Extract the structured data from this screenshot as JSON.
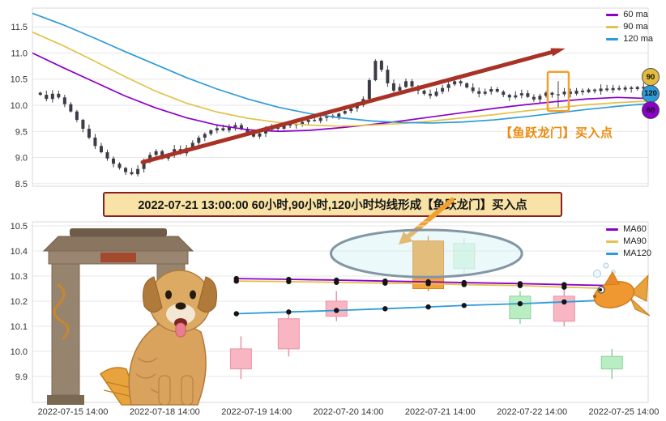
{
  "banner": {
    "text": "2022-07-21 13:00:00 60小时,90小时,120小时均线形成【鱼跃龙门】买入点",
    "bg": "#f8e2a6",
    "border": "#8b1f1f",
    "arrow_color": "#f0a030"
  },
  "chart_data": [
    {
      "id": "hourly-overview",
      "type": "candlestick",
      "ylim": [
        8.45,
        11.86
      ],
      "yticks": [
        11.5,
        11.0,
        10.5,
        10.0,
        9.5,
        9.0,
        8.5
      ],
      "legend": [
        {
          "label": "60 ma",
          "color": "#8b00c8"
        },
        {
          "label": "90 ma",
          "color": "#e3c24d"
        },
        {
          "label": "120 ma",
          "color": "#2d9bd8"
        }
      ],
      "candle_color": "#3c3c46",
      "closes": [
        10.2,
        10.12,
        10.22,
        10.15,
        10.02,
        9.88,
        9.72,
        9.55,
        9.38,
        9.22,
        9.1,
        8.98,
        8.88,
        8.8,
        8.72,
        8.68,
        8.78,
        8.92,
        9.05,
        9.12,
        8.98,
        9.06,
        9.16,
        9.08,
        9.18,
        9.28,
        9.38,
        9.45,
        9.52,
        9.56,
        9.52,
        9.58,
        9.62,
        9.55,
        9.47,
        9.4,
        9.46,
        9.53,
        9.58,
        9.55,
        9.61,
        9.65,
        9.62,
        9.68,
        9.72,
        9.7,
        9.76,
        9.8,
        9.78,
        9.84,
        9.89,
        9.94,
        10.0,
        10.12,
        10.48,
        10.85,
        10.68,
        10.42,
        10.28,
        10.35,
        10.46,
        10.36,
        10.28,
        10.22,
        10.18,
        10.26,
        10.33,
        10.4,
        10.46,
        10.42,
        10.34,
        10.27,
        10.22,
        10.26,
        10.31,
        10.26,
        10.2,
        10.15,
        10.19,
        10.23,
        10.16,
        10.11,
        10.18,
        10.24,
        10.2,
        10.21,
        10.26,
        10.22,
        10.28,
        10.25,
        10.3,
        10.27,
        10.32,
        10.29,
        10.33,
        10.3,
        10.34,
        10.31,
        10.35,
        10.32
      ],
      "signal": {
        "index": 85,
        "high": 10.46,
        "low": 9.95
      },
      "ma_x_step": 0.05,
      "ma60": [
        11.0,
        10.72,
        10.45,
        10.18,
        9.95,
        9.76,
        9.62,
        9.53,
        9.5,
        9.52,
        9.57,
        9.63,
        9.7,
        9.78,
        9.86,
        9.94,
        10.01,
        10.07,
        10.12,
        10.15,
        10.13
      ],
      "ma90": [
        11.4,
        11.14,
        10.85,
        10.55,
        10.27,
        10.04,
        9.87,
        9.75,
        9.67,
        9.62,
        9.6,
        9.62,
        9.65,
        9.7,
        9.76,
        9.82,
        9.89,
        9.95,
        10.01,
        10.05,
        10.08
      ],
      "ma120": [
        11.76,
        11.54,
        11.29,
        11.03,
        10.78,
        10.53,
        10.31,
        10.12,
        9.96,
        9.84,
        9.76,
        9.7,
        9.67,
        9.66,
        9.68,
        9.72,
        9.78,
        9.85,
        9.92,
        9.98,
        10.03
      ],
      "trend_arrow": {
        "x1": 0.179,
        "y1": 8.91,
        "x2": 0.854,
        "y2": 11.05,
        "color": "#a93226"
      },
      "highlight_box": {
        "index": 85,
        "v_top": 10.64,
        "v_bottom": 9.89,
        "color": "#f0a030"
      },
      "badges": [
        {
          "label": "90",
          "color": "#e3bc3f"
        },
        {
          "label": "120",
          "color": "#2d9bd8"
        },
        {
          "label": "60",
          "color": "#8b00c8"
        }
      ],
      "buy_label": "【鱼跃龙门】买入点"
    },
    {
      "id": "signal-detail",
      "type": "candlestick",
      "ylim": [
        9.8,
        10.53
      ],
      "yticks": [
        10.5,
        10.4,
        10.3,
        10.2,
        10.1,
        10.0,
        9.9
      ],
      "xticks": [
        "2022-07-15 14:00",
        "2022-07-18 14:00",
        "2022-07-19 14:00",
        "2022-07-20 14:00",
        "2022-07-21 14:00",
        "2022-07-22 14:00",
        "2022-07-25 14:00"
      ],
      "legend": [
        {
          "label": "MA60",
          "color": "#8b00c8"
        },
        {
          "label": "MA90",
          "color": "#e3c24d"
        },
        {
          "label": "MA120",
          "color": "#2d9bd8"
        }
      ],
      "colors": {
        "up": "#b9eec3",
        "up_edge": "#8fcf9f",
        "down": "#f7b6c2",
        "down_edge": "#ea93a4",
        "signal": "#f2a33c",
        "signal_edge": "#d9891f"
      },
      "candles": [
        {
          "t": 1.83,
          "o": 10.01,
          "h": 10.06,
          "l": 9.89,
          "c": 9.93,
          "kind": "down"
        },
        {
          "t": 2.35,
          "o": 10.13,
          "h": 10.16,
          "l": 9.98,
          "c": 10.01,
          "kind": "down"
        },
        {
          "t": 2.87,
          "o": 10.2,
          "h": 10.24,
          "l": 10.12,
          "c": 10.14,
          "kind": "down"
        },
        {
          "t": 3.87,
          "o": 10.25,
          "h": 10.46,
          "l": 10.24,
          "c": 10.44,
          "kind": "signal"
        },
        {
          "t": 4.26,
          "o": 10.33,
          "h": 10.45,
          "l": 10.31,
          "c": 10.43,
          "kind": "up-faded"
        },
        {
          "t": 4.87,
          "o": 10.13,
          "h": 10.24,
          "l": 10.11,
          "c": 10.22,
          "kind": "up"
        },
        {
          "t": 5.35,
          "o": 10.22,
          "h": 10.25,
          "l": 10.1,
          "c": 10.12,
          "kind": "down"
        },
        {
          "t": 5.87,
          "o": 9.93,
          "h": 10.01,
          "l": 9.89,
          "c": 9.98,
          "kind": "up"
        }
      ],
      "ma_t": [
        1.78,
        2.35,
        2.87,
        3.4,
        3.87,
        4.26,
        4.87,
        5.35,
        5.87
      ],
      "ma60": [
        10.29,
        10.287,
        10.284,
        10.28,
        10.277,
        10.274,
        10.27,
        10.266,
        10.262
      ],
      "ma90": [
        10.28,
        10.278,
        10.275,
        10.272,
        10.27,
        10.266,
        10.262,
        10.256,
        10.25
      ],
      "ma120": [
        10.15,
        10.157,
        10.163,
        10.17,
        10.177,
        10.183,
        10.19,
        10.197,
        10.205
      ],
      "ellipse": {
        "cx_t": 3.85,
        "cy_v": 10.39,
        "rx_t": 1.04,
        "ry_v": 0.094,
        "fill": "#c9eef2",
        "stroke": "#8296a3"
      }
    }
  ]
}
